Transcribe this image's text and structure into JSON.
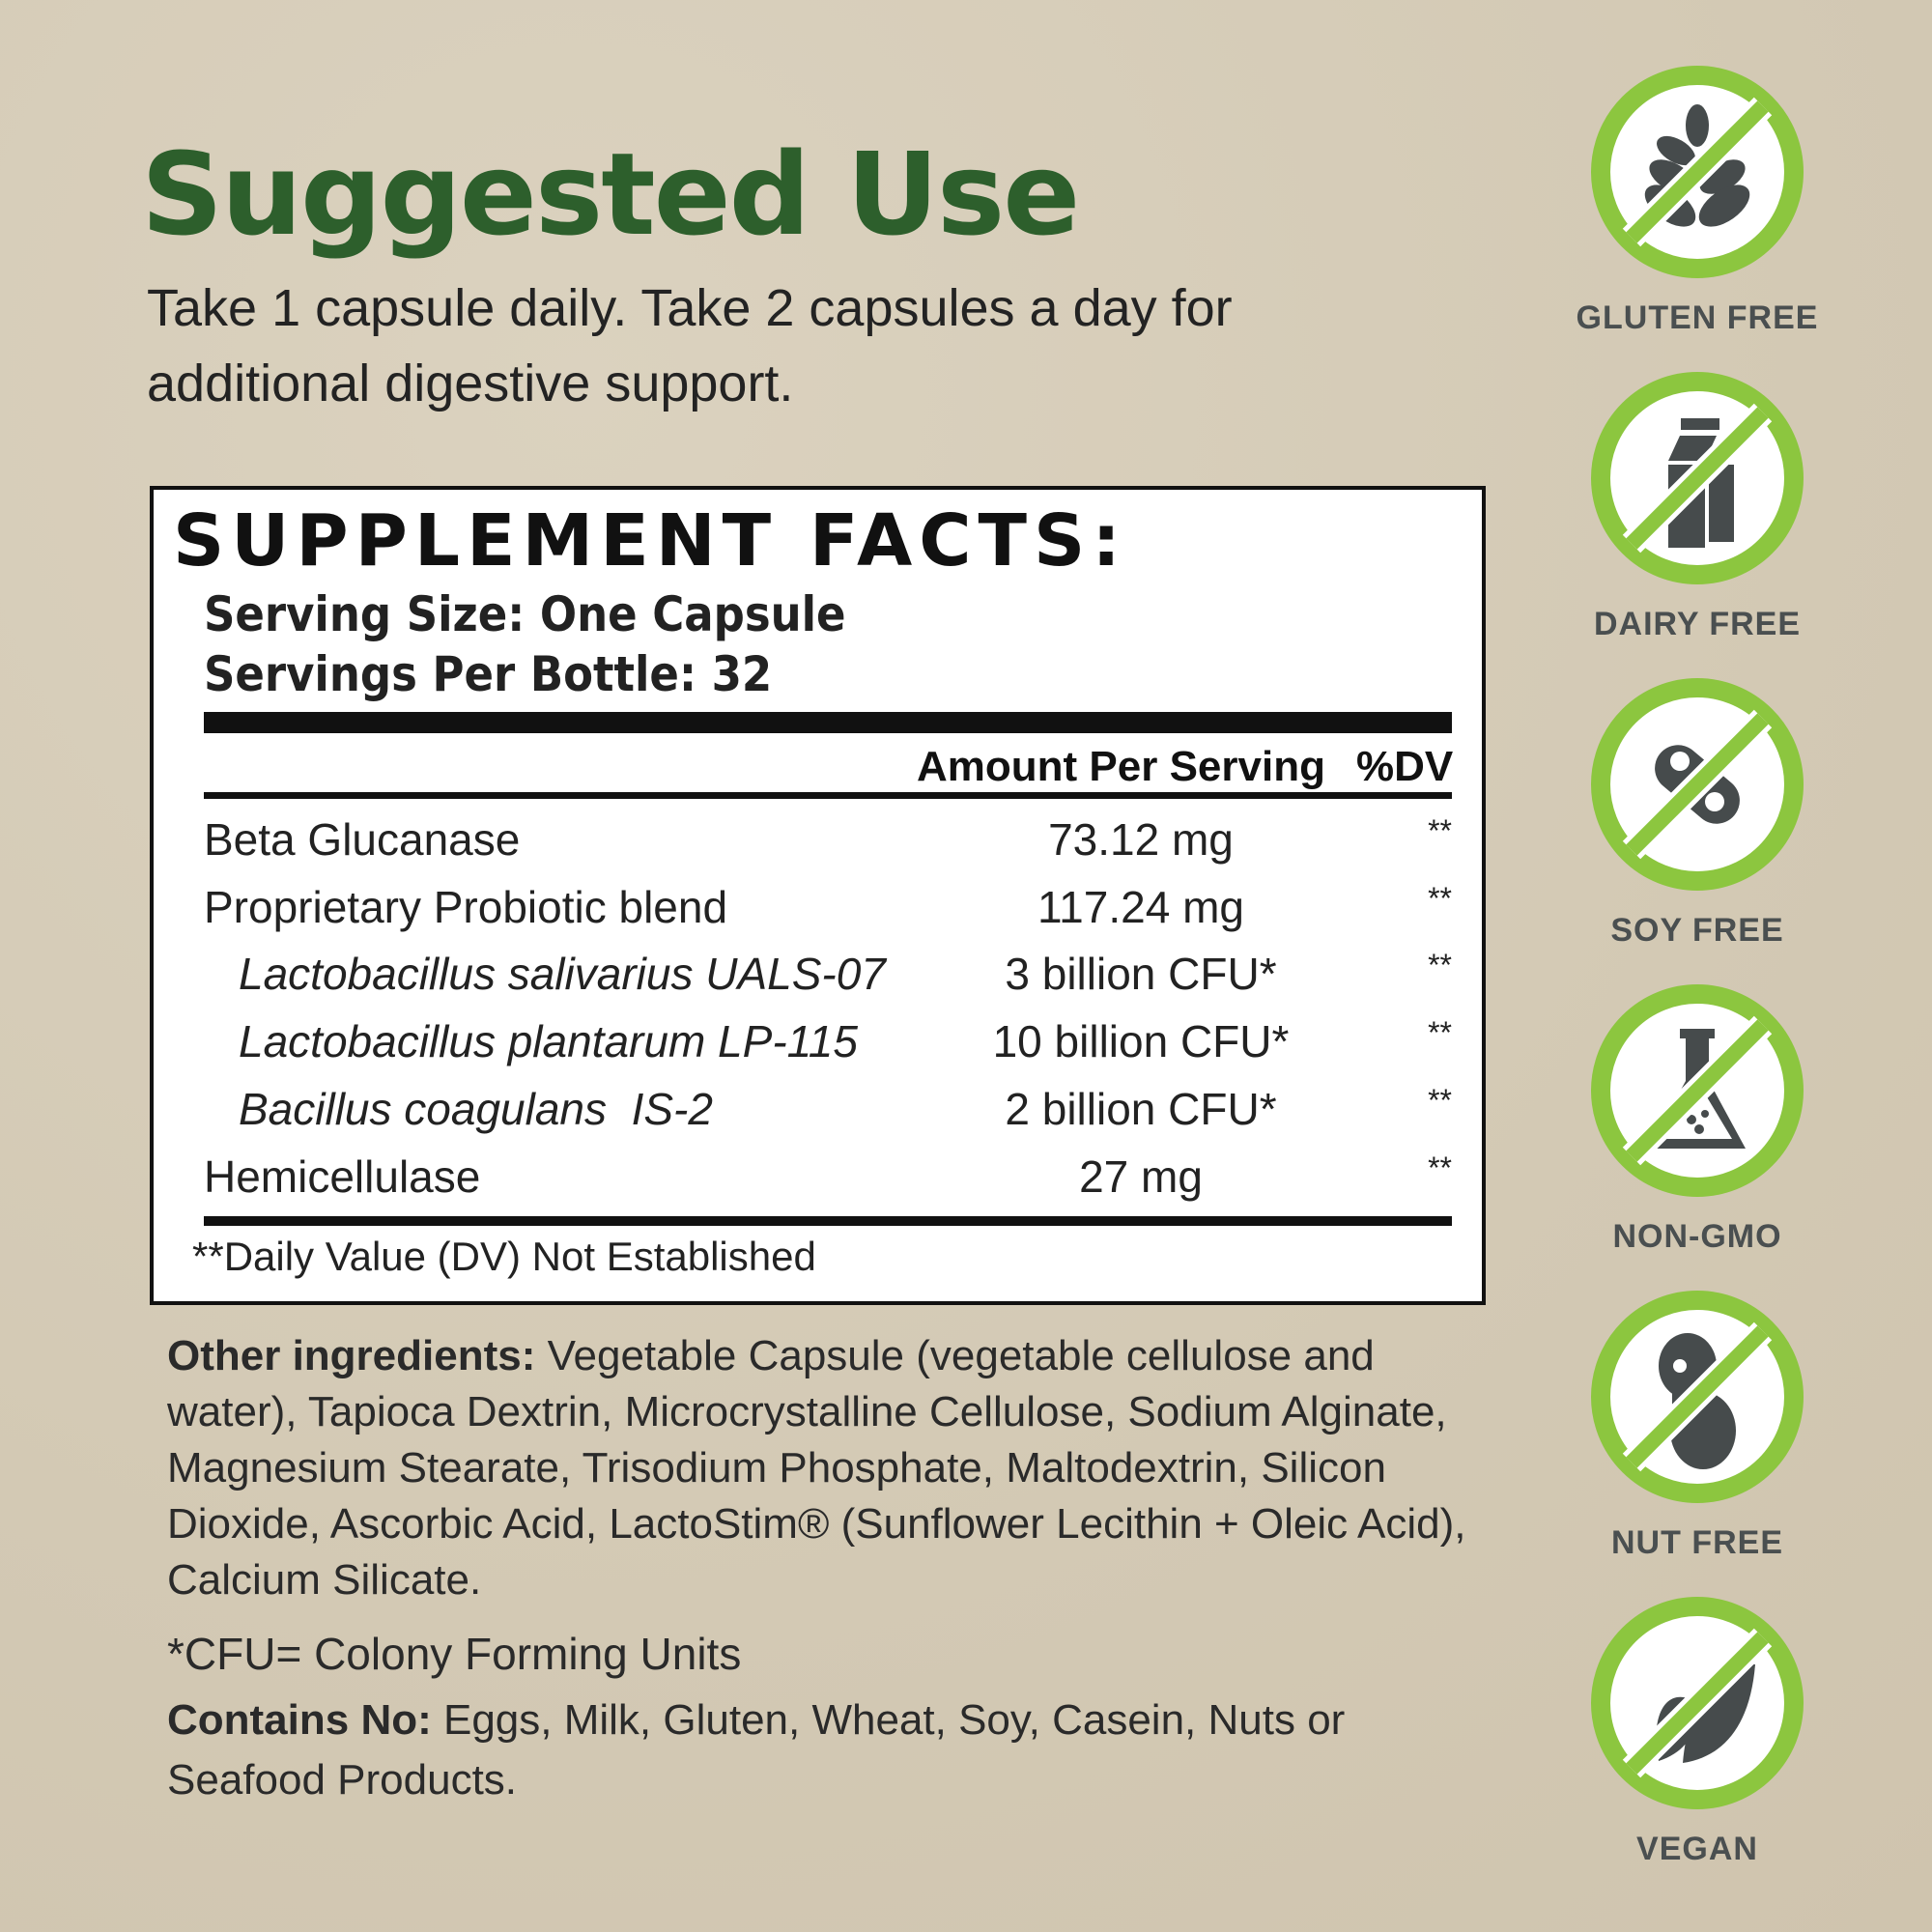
{
  "suggested_use": {
    "title": "Suggested Use",
    "text": "Take 1 capsule daily. Take 2 capsules a day for additional digestive support."
  },
  "facts": {
    "title": "SUPPLEMENT FACTS:",
    "serving_size": "Serving Size: One Capsule",
    "servings_per": "Servings Per Bottle: 32",
    "col_amount": "Amount Per Serving",
    "col_dv": "%DV",
    "rows": [
      {
        "name": "Beta Glucanase",
        "amount": "73.12 mg",
        "dv": "**"
      },
      {
        "name": "Proprietary Probiotic blend",
        "amount": "117.24 mg",
        "dv": "**"
      },
      {
        "name": "Lactobacillus salivarius UALS-07",
        "amount": "3 billion CFU*",
        "dv": "**"
      },
      {
        "name": "Lactobacillus plantarum LP-115",
        "amount": "10 billion CFU*",
        "dv": "**"
      },
      {
        "name": "Bacillus coagulans  IS-2",
        "amount": "2 billion CFU*",
        "dv": "**"
      },
      {
        "name": "Hemicellulase",
        "amount": "27 mg",
        "dv": "**"
      }
    ],
    "footnote": "**Daily Value (DV) Not Established"
  },
  "other": {
    "label": "Other ingredients:",
    "text": " Vegetable Capsule (vegetable cellulose and water), Tapioca Dextrin, Microcrystalline Cellulose, Sodium Alginate, Magnesium Stearate, Trisodium Phosphate, Maltodextrin, Silicon Dioxide, Ascorbic Acid, LactoStim® (Sunflower Lecithin + Oleic Acid), Calcium Silicate."
  },
  "cfu_note": "*CFU= Colony Forming Units",
  "contains": {
    "label": "Contains No:",
    "text": " Eggs, Milk, Gluten, Wheat, Soy, Casein, Nuts or Seafood Products."
  },
  "badges": [
    {
      "label": "GLUTEN FREE",
      "icon": "wheat-icon"
    },
    {
      "label": "DAIRY FREE",
      "icon": "milk-carton-icon"
    },
    {
      "label": "SOY FREE",
      "icon": "soybean-icon"
    },
    {
      "label": "NON-GMO",
      "icon": "flask-icon"
    },
    {
      "label": "NUT FREE",
      "icon": "peanut-icon"
    },
    {
      "label": "VEGAN",
      "icon": "leaf-icon"
    }
  ],
  "colors": {
    "title_green": "#2d5f2c",
    "badge_green": "#8cc63f",
    "icon_gray": "#464b4c"
  }
}
